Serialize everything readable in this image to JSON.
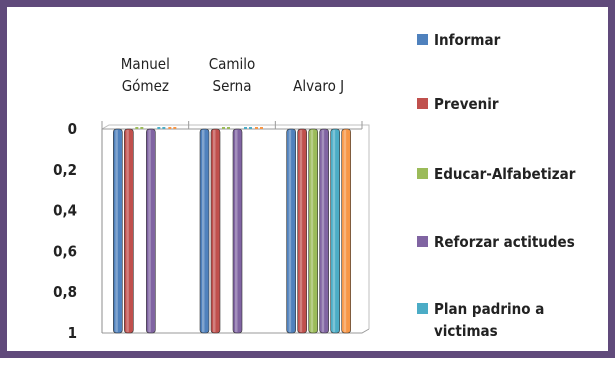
{
  "chart_data": {
    "type": "bar",
    "orientation": "vertical",
    "y_axis_reversed": true,
    "categories": [
      [
        "Manuel",
        "Gómez"
      ],
      [
        "Camilo",
        "Serna"
      ],
      [
        "Alvaro J"
      ]
    ],
    "yticks": [
      "0",
      "0,2",
      "0,4",
      "0,6",
      "0,8",
      "1"
    ],
    "ylim": [
      0,
      1
    ],
    "grid": false,
    "legend_position": "right",
    "series": [
      {
        "name": "Informar",
        "color": "#4f81bd",
        "values": [
          1,
          1,
          1
        ]
      },
      {
        "name": "Prevenir",
        "color": "#c0504d",
        "values": [
          1,
          1,
          1
        ]
      },
      {
        "name": "Educar-Alfabetizar",
        "color": "#9bbb59",
        "values": [
          0,
          0,
          1
        ]
      },
      {
        "name": "Reforzar actitudes",
        "color": "#8064a2",
        "values": [
          1,
          1,
          1
        ]
      },
      {
        "name": "Plan padrino a victimas",
        "color": "#4bacc6",
        "values": [
          0,
          0,
          1
        ]
      },
      {
        "name": "",
        "color": "#f79646",
        "values": [
          0,
          0,
          1
        ]
      }
    ],
    "legend_visible": [
      {
        "label": "Informar",
        "color": "#4f81bd"
      },
      {
        "label": "Prevenir",
        "color": "#c0504d"
      },
      {
        "label": "Educar-Alfabetizar",
        "color": "#9bbb59"
      },
      {
        "label": "Reforzar actitudes",
        "color": "#8064a2"
      },
      {
        "label": [
          "Plan padrino a",
          "victimas"
        ],
        "color": "#4bacc6"
      }
    ]
  }
}
